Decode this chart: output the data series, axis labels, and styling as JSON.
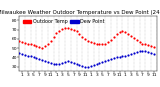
{
  "title": "Milwaukee Weather Outdoor Temperature vs Dew Point (24 Hours)",
  "temp_label": "Outdoor Temp",
  "dew_label": "Dew Point",
  "temp_color": "#ff0000",
  "dew_color": "#0000cc",
  "bg_color": "#ffffff",
  "xlim": [
    0,
    48
  ],
  "ylim": [
    25,
    85
  ],
  "ytick_positions": [
    30,
    40,
    50,
    60,
    70,
    80
  ],
  "ytick_labels": [
    "30",
    "40",
    "50",
    "60",
    "70",
    "80"
  ],
  "xtick_positions": [
    1,
    3,
    5,
    7,
    9,
    11,
    13,
    15,
    17,
    19,
    21,
    23,
    25,
    27,
    29,
    31,
    33,
    35,
    37,
    39,
    41,
    43,
    45,
    47
  ],
  "xtick_labels": [
    "1",
    "3",
    "5",
    "7",
    "9",
    "11",
    "1",
    "3",
    "5",
    "7",
    "9",
    "11",
    "1",
    "3",
    "5",
    "7",
    "9",
    "11",
    "1",
    "3",
    "5",
    "7",
    "9",
    "11"
  ],
  "grid_positions": [
    0,
    2,
    4,
    6,
    8,
    10,
    12,
    14,
    16,
    18,
    20,
    22,
    24,
    26,
    28,
    30,
    32,
    34,
    36,
    38,
    40,
    42,
    44,
    46,
    48
  ],
  "temp_x": [
    0,
    1,
    2,
    3,
    4,
    5,
    6,
    7,
    8,
    9,
    10,
    11,
    12,
    13,
    14,
    15,
    16,
    17,
    18,
    19,
    20,
    21,
    22,
    23,
    24,
    25,
    26,
    27,
    28,
    29,
    30,
    31,
    32,
    33,
    34,
    35,
    36,
    37,
    38,
    39,
    40,
    41,
    42,
    43,
    44,
    45,
    46,
    47
  ],
  "temp_y": [
    58,
    57,
    56,
    55,
    54,
    53,
    52,
    51,
    50,
    52,
    55,
    58,
    62,
    66,
    69,
    71,
    72,
    72,
    71,
    70,
    68,
    65,
    62,
    60,
    58,
    57,
    56,
    55,
    54,
    54,
    55,
    57,
    59,
    62,
    65,
    67,
    68,
    67,
    65,
    63,
    61,
    59,
    57,
    55,
    54,
    53,
    52,
    51
  ],
  "dew_x": [
    0,
    1,
    2,
    3,
    4,
    5,
    6,
    7,
    8,
    9,
    10,
    11,
    12,
    13,
    14,
    15,
    16,
    17,
    18,
    19,
    20,
    21,
    22,
    23,
    24,
    25,
    26,
    27,
    28,
    29,
    30,
    31,
    32,
    33,
    34,
    35,
    36,
    37,
    38,
    39,
    40,
    41,
    42,
    43,
    44,
    45,
    46,
    47
  ],
  "dew_y": [
    45,
    44,
    43,
    42,
    41,
    40,
    39,
    38,
    37,
    36,
    35,
    34,
    33,
    33,
    33,
    34,
    35,
    36,
    35,
    34,
    33,
    32,
    31,
    30,
    30,
    31,
    32,
    33,
    34,
    35,
    36,
    37,
    38,
    39,
    40,
    40,
    41,
    42,
    43,
    44,
    45,
    46,
    47,
    47,
    47,
    46,
    45,
    44
  ],
  "marker_size": 2.5,
  "title_fontsize": 4.0,
  "tick_fontsize": 3.2,
  "legend_fontsize": 3.5,
  "legend_handle_red": "#ff0000",
  "legend_handle_blue": "#0000cc"
}
